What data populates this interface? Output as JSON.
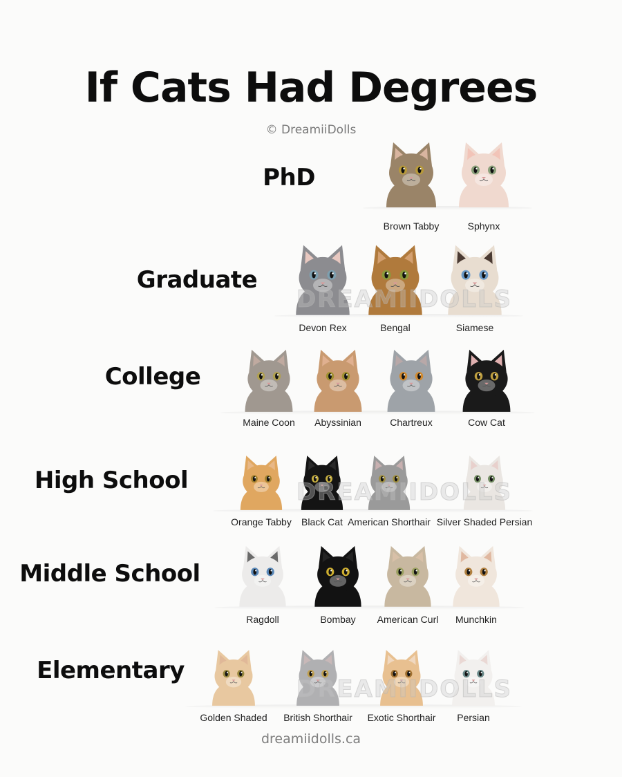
{
  "title": "If Cats Had Degrees",
  "copyright": "© DreamiiDolls",
  "watermark": "DREAMIIDOLLS",
  "footer": "dreamiidolls.ca",
  "levels": [
    {
      "label": "PhD",
      "cats": [
        {
          "name": "Brown Tabby",
          "fur": "#9a8468",
          "ear": "#d9b5a0",
          "eyes": "#b89a3a"
        },
        {
          "name": "Sphynx",
          "fur": "#f0d9cf",
          "ear": "#f2c4b8",
          "eyes": "#8aa07a"
        }
      ]
    },
    {
      "label": "Graduate",
      "cats": [
        {
          "name": "Devon Rex",
          "fur": "#8c8c90",
          "ear": "#e8c8c0",
          "eyes": "#7da0b0"
        },
        {
          "name": "Bengal",
          "fur": "#b07a3c",
          "ear": "#d4a070",
          "eyes": "#8a9a3a"
        },
        {
          "name": "Siamese",
          "fur": "#e8ddd0",
          "ear": "#4a3a32",
          "eyes": "#6a9ac8"
        }
      ]
    },
    {
      "label": "College",
      "cats": [
        {
          "name": "Maine Coon",
          "fur": "#a09890",
          "ear": "#c0aaa0",
          "eyes": "#b0a050"
        },
        {
          "name": "Abyssinian",
          "fur": "#c99a70",
          "ear": "#e0b090",
          "eyes": "#a09030"
        },
        {
          "name": "Chartreux",
          "fur": "#9ea3a8",
          "ear": "#b8a8a8",
          "eyes": "#d08a30"
        },
        {
          "name": "Cow Cat",
          "fur": "#1a1a1a",
          "ear": "#e0b0b0",
          "eyes": "#c0a040"
        }
      ]
    },
    {
      "label": "High School",
      "cats": [
        {
          "name": "Orange Tabby",
          "fur": "#e0a760",
          "ear": "#e8b888",
          "eyes": "#a08030"
        },
        {
          "name": "Black Cat",
          "fur": "#141414",
          "ear": "#2a2a2a",
          "eyes": "#c8b040"
        },
        {
          "name": "American Shorthair",
          "fur": "#9a9a9a",
          "ear": "#c8b0b0",
          "eyes": "#a09040"
        },
        {
          "name": "Silver Shaded Persian",
          "fur": "#eae6e2",
          "ear": "#e8d0cc",
          "eyes": "#708a60"
        }
      ]
    },
    {
      "label": "Middle School",
      "cats": [
        {
          "name": "Ragdoll",
          "fur": "#ecebea",
          "ear": "#6a6a6a",
          "eyes": "#5a88b8"
        },
        {
          "name": "Bombay",
          "fur": "#121212",
          "ear": "#242424",
          "eyes": "#d0b030"
        },
        {
          "name": "American Curl",
          "fur": "#c8b8a0",
          "ear": "#d8c0a8",
          "eyes": "#9aa060"
        },
        {
          "name": "Munchkin",
          "fur": "#f0e6dc",
          "ear": "#e0b8a0",
          "eyes": "#b08040"
        }
      ]
    },
    {
      "label": "Elementary",
      "cats": [
        {
          "name": "Golden Shaded",
          "fur": "#e8c8a0",
          "ear": "#e0b898",
          "eyes": "#9a8a40"
        },
        {
          "name": "British Shorthair",
          "fur": "#b0b0b2",
          "ear": "#c8b8b8",
          "eyes": "#c0a050"
        },
        {
          "name": "Exotic Shorthair",
          "fur": "#e8c090",
          "ear": "#f0d8c0",
          "eyes": "#a07030"
        },
        {
          "name": "Persian",
          "fur": "#f2f0ee",
          "ear": "#ead8d4",
          "eyes": "#6a8a8a"
        }
      ]
    }
  ]
}
